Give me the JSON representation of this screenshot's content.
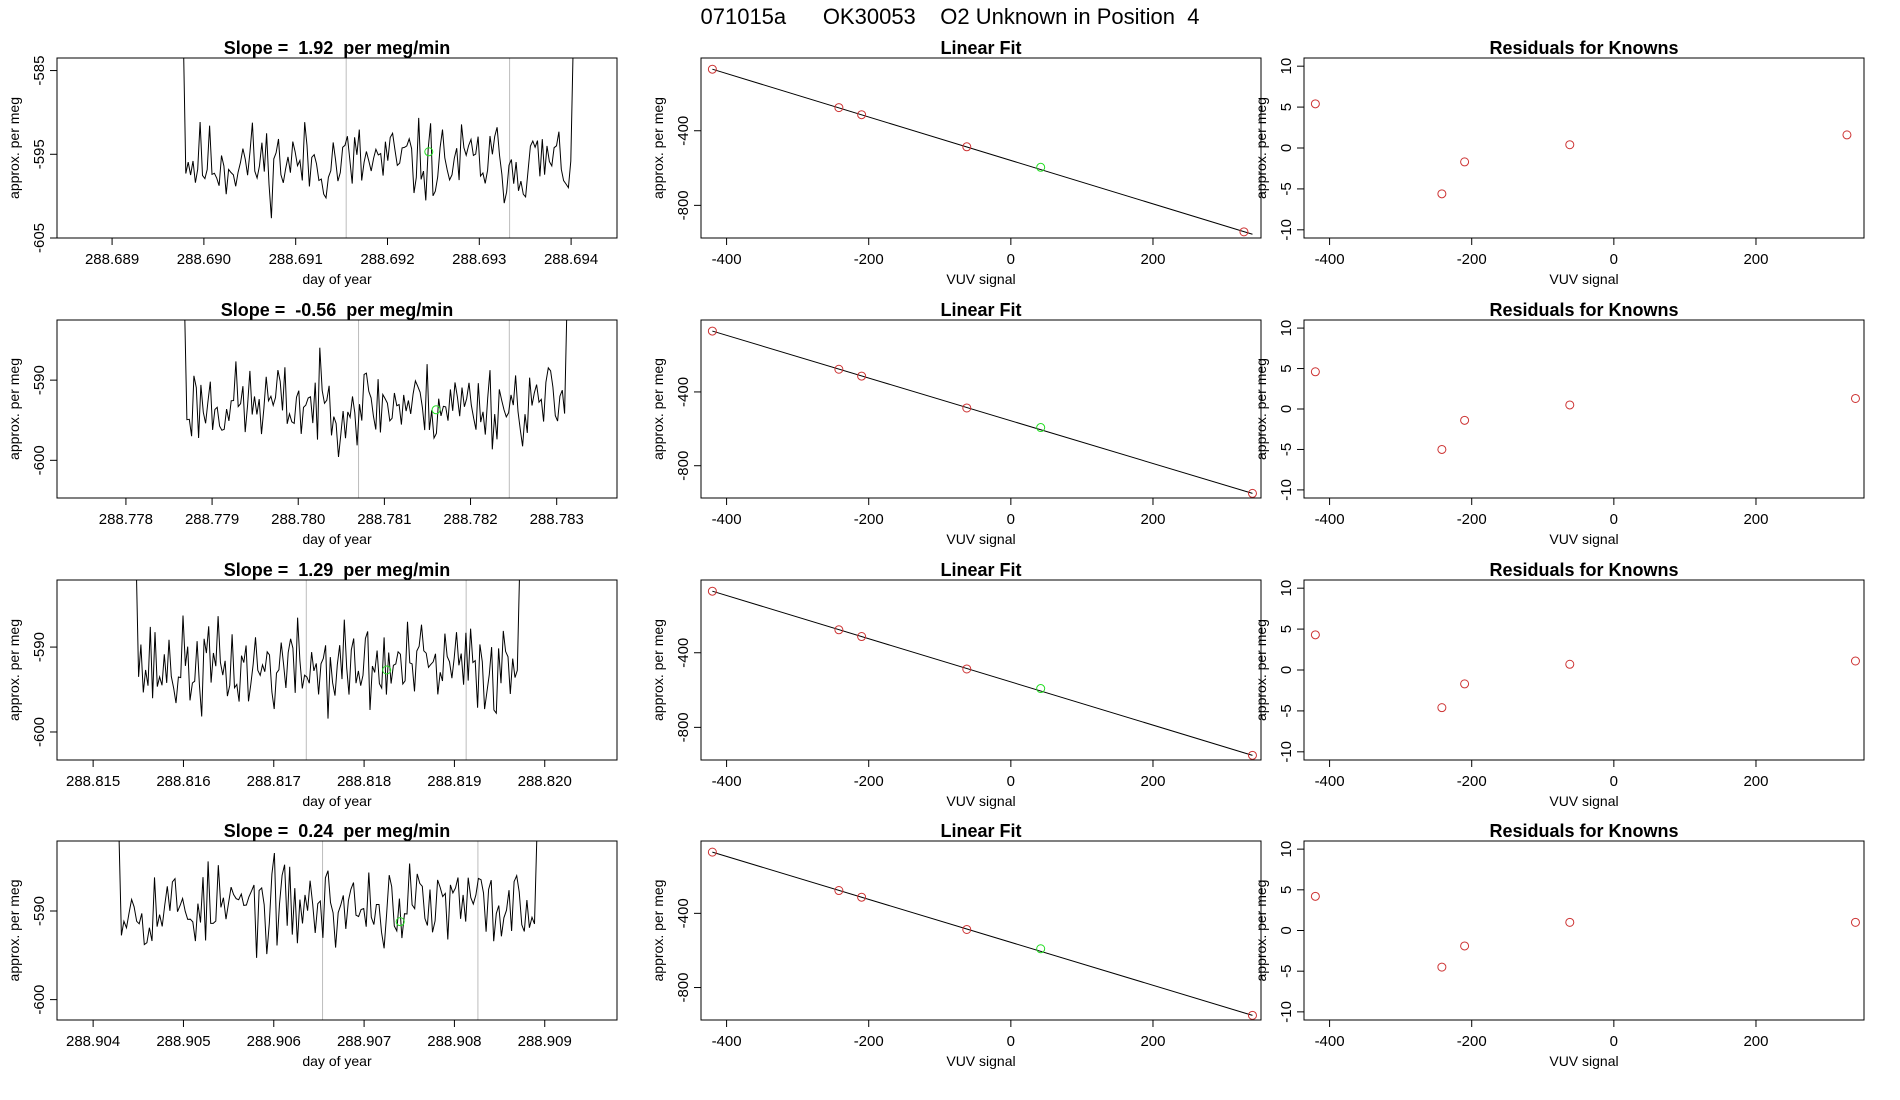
{
  "figure_title": "071015a      OK30053    O2 Unknown in Position  4",
  "colors": {
    "known_point": "#cd3333",
    "unknown_point": "#22dd22",
    "marker_line": "#bdbdbd",
    "axis": "#000000"
  },
  "chart_data": [
    {
      "type": "line",
      "row": 0,
      "col": 0,
      "title": "Slope =  1.92  per meg/min",
      "xlabel": "day of year",
      "ylabel": "approx. per meg",
      "xlim": [
        288.6884,
        288.6945
      ],
      "ylim": [
        -605,
        -583.5
      ],
      "xticks": [
        288.689,
        288.69,
        288.691,
        288.692,
        288.693,
        288.694
      ],
      "xtick_labels": [
        "288.689",
        "288.690",
        "288.691",
        "288.692",
        "288.693",
        "288.694"
      ],
      "yticks": [
        -605,
        -595,
        -585
      ],
      "ytick_labels": [
        "-605",
        "-595",
        "-585"
      ],
      "series_range": [
        288.6897,
        288.6941
      ],
      "series_center": -596,
      "series_amplitude": 2.2,
      "edge_high": true,
      "seed": 11,
      "vlines": [
        288.69155,
        288.69333
      ],
      "green_point": {
        "x": 288.69245,
        "y": -594.7
      }
    },
    {
      "type": "line",
      "row": 1,
      "col": 0,
      "title": "Slope =  -0.56  per meg/min",
      "xlabel": "day of year",
      "ylabel": "approx. per meg",
      "xlim": [
        288.7772,
        288.7837
      ],
      "ylim": [
        -604.7,
        -582.5
      ],
      "xticks": [
        288.778,
        288.779,
        288.78,
        288.781,
        288.782,
        288.783
      ],
      "xtick_labels": [
        "288.778",
        "288.779",
        "288.780",
        "288.781",
        "288.782",
        "288.783"
      ],
      "yticks": [
        -600,
        -590
      ],
      "ytick_labels": [
        "-600",
        "-590"
      ],
      "series_range": [
        288.7786,
        288.7832
      ],
      "series_center": -593,
      "series_amplitude": 2.3,
      "edge_high": true,
      "seed": 23,
      "vlines": [
        288.7807,
        288.78245
      ],
      "green_point": {
        "x": 288.7816,
        "y": -593.7
      }
    },
    {
      "type": "line",
      "row": 2,
      "col": 0,
      "title": "Slope =  1.29  per meg/min",
      "xlabel": "day of year",
      "ylabel": "approx. per meg",
      "xlim": [
        288.8146,
        288.8208
      ],
      "ylim": [
        -603.3,
        -582.1
      ],
      "xticks": [
        288.815,
        288.816,
        288.817,
        288.818,
        288.819,
        288.82
      ],
      "xtick_labels": [
        "288.815",
        "288.816",
        "288.817",
        "288.818",
        "288.819",
        "288.820"
      ],
      "yticks": [
        -600,
        -590
      ],
      "ytick_labels": [
        "-600",
        "-590"
      ],
      "series_range": [
        288.8154,
        288.8198
      ],
      "series_center": -592.5,
      "series_amplitude": 2.5,
      "edge_high": true,
      "seed": 37,
      "vlines": [
        288.81736,
        288.81913
      ],
      "green_point": {
        "x": 288.81825,
        "y": -592.7
      }
    },
    {
      "type": "line",
      "row": 3,
      "col": 0,
      "title": "Slope =  0.24  per meg/min",
      "xlabel": "day of year",
      "ylabel": "approx. per meg",
      "xlim": [
        288.9036,
        288.9098
      ],
      "ylim": [
        -602.3,
        -582.1
      ],
      "xticks": [
        288.904,
        288.905,
        288.906,
        288.907,
        288.908,
        288.909
      ],
      "xtick_labels": [
        "288.904",
        "288.905",
        "288.906",
        "288.907",
        "288.908",
        "288.909"
      ],
      "yticks": [
        -600,
        -590
      ],
      "ytick_labels": [
        "-600",
        "-590"
      ],
      "series_range": [
        288.9042,
        288.909
      ],
      "series_center": -589.5,
      "series_amplitude": 2.2,
      "edge_high": true,
      "seed": 53,
      "vlines": [
        288.90654,
        288.90826
      ],
      "green_point": {
        "x": 288.9074,
        "y": -591.2
      }
    },
    {
      "type": "scatter",
      "row": 0,
      "col": 1,
      "title": "Linear Fit",
      "xlabel": "VUV signal",
      "ylabel": "approx. per meg",
      "xlim": [
        -436,
        352
      ],
      "ylim": [
        -975,
        -10
      ],
      "xticks": [
        -400,
        -200,
        0,
        200
      ],
      "xtick_labels": [
        "-400",
        "-200",
        "0",
        "200"
      ],
      "yticks": [
        -800,
        -400
      ],
      "ytick_labels": [
        "-800",
        "-400"
      ],
      "fit_line": {
        "x": [
          -420,
          340
        ],
        "y": [
          -70,
          -955
        ]
      },
      "known_points": {
        "x": [
          -420,
          -242,
          -210,
          -62,
          328
        ],
        "y": [
          -70,
          -276,
          -314,
          -486,
          -942
        ]
      },
      "unknown_point": {
        "x": 42,
        "y": -596
      }
    },
    {
      "type": "scatter",
      "row": 1,
      "col": 1,
      "title": "Linear Fit",
      "xlabel": "VUV signal",
      "ylabel": "approx. per meg",
      "xlim": [
        -436,
        352
      ],
      "ylim": [
        -975,
        -10
      ],
      "xticks": [
        -400,
        -200,
        0,
        200
      ],
      "xtick_labels": [
        "-400",
        "-200",
        "0",
        "200"
      ],
      "yticks": [
        -800,
        -400
      ],
      "ytick_labels": [
        "-800",
        "-400"
      ],
      "fit_line": {
        "x": [
          -420,
          340
        ],
        "y": [
          -70,
          -950
        ]
      },
      "known_points": {
        "x": [
          -420,
          -242,
          -210,
          -62,
          340
        ],
        "y": [
          -70,
          -277,
          -314,
          -487,
          -950
        ]
      },
      "unknown_point": {
        "x": 42,
        "y": -593
      }
    },
    {
      "type": "scatter",
      "row": 2,
      "col": 1,
      "title": "Linear Fit",
      "xlabel": "VUV signal",
      "ylabel": "approx. per meg",
      "xlim": [
        -436,
        352
      ],
      "ylim": [
        -975,
        -10
      ],
      "xticks": [
        -400,
        -200,
        0,
        200
      ],
      "xtick_labels": [
        "-400",
        "-200",
        "0",
        "200"
      ],
      "yticks": [
        -800,
        -400
      ],
      "ytick_labels": [
        "-800",
        "-400"
      ],
      "fit_line": {
        "x": [
          -420,
          340
        ],
        "y": [
          -70,
          -950
        ]
      },
      "known_points": {
        "x": [
          -420,
          -242,
          -210,
          -62,
          340
        ],
        "y": [
          -70,
          -277,
          -313,
          -487,
          -950
        ]
      },
      "unknown_point": {
        "x": 42,
        "y": -592
      }
    },
    {
      "type": "scatter",
      "row": 3,
      "col": 1,
      "title": "Linear Fit",
      "xlabel": "VUV signal",
      "ylabel": "approx. per meg",
      "xlim": [
        -436,
        352
      ],
      "ylim": [
        -975,
        -10
      ],
      "xticks": [
        -400,
        -200,
        0,
        200
      ],
      "xtick_labels": [
        "-400",
        "-200",
        "0",
        "200"
      ],
      "yticks": [
        -800,
        -400
      ],
      "ytick_labels": [
        "-800",
        "-400"
      ],
      "fit_line": {
        "x": [
          -420,
          340
        ],
        "y": [
          -70,
          -950
        ]
      },
      "known_points": {
        "x": [
          -420,
          -242,
          -210,
          -62,
          340
        ],
        "y": [
          -70,
          -277,
          -313,
          -487,
          -950
        ]
      },
      "unknown_point": {
        "x": 42,
        "y": -591
      }
    },
    {
      "type": "scatter",
      "row": 0,
      "col": 2,
      "title": "Residuals for Knowns",
      "xlabel": "VUV signal",
      "ylabel": "approx. per meg",
      "xlim": [
        -436,
        352
      ],
      "ylim": [
        -11,
        11
      ],
      "xticks": [
        -400,
        -200,
        0,
        200
      ],
      "xtick_labels": [
        "-400",
        "-200",
        "0",
        "200"
      ],
      "yticks": [
        -10,
        -5,
        0,
        5,
        10
      ],
      "ytick_labels": [
        "-10",
        "-5",
        "0",
        "5",
        "10"
      ],
      "known_points": {
        "x": [
          -420,
          -242,
          -210,
          -62,
          328
        ],
        "y": [
          5.4,
          -5.6,
          -1.7,
          0.4,
          1.6
        ]
      }
    },
    {
      "type": "scatter",
      "row": 1,
      "col": 2,
      "title": "Residuals for Knowns",
      "xlabel": "VUV signal",
      "ylabel": "approx. per meg",
      "xlim": [
        -436,
        352
      ],
      "ylim": [
        -11,
        11
      ],
      "xticks": [
        -400,
        -200,
        0,
        200
      ],
      "xtick_labels": [
        "-400",
        "-200",
        "0",
        "200"
      ],
      "yticks": [
        -10,
        -5,
        0,
        5,
        10
      ],
      "ytick_labels": [
        "-10",
        "-5",
        "0",
        "5",
        "10"
      ],
      "known_points": {
        "x": [
          -420,
          -242,
          -210,
          -62,
          340
        ],
        "y": [
          4.6,
          -5.0,
          -1.4,
          0.5,
          1.3
        ]
      }
    },
    {
      "type": "scatter",
      "row": 2,
      "col": 2,
      "title": "Residuals for Knowns",
      "xlabel": "VUV signal",
      "ylabel": "approx. per meg",
      "xlim": [
        -436,
        352
      ],
      "ylim": [
        -11,
        11
      ],
      "xticks": [
        -400,
        -200,
        0,
        200
      ],
      "xtick_labels": [
        "-400",
        "-200",
        "0",
        "200"
      ],
      "yticks": [
        -10,
        -5,
        0,
        5,
        10
      ],
      "ytick_labels": [
        "-10",
        "-5",
        "0",
        "5",
        "10"
      ],
      "known_points": {
        "x": [
          -420,
          -242,
          -210,
          -62,
          340
        ],
        "y": [
          4.3,
          -4.6,
          -1.7,
          0.7,
          1.1
        ]
      }
    },
    {
      "type": "scatter",
      "row": 3,
      "col": 2,
      "title": "Residuals for Knowns",
      "xlabel": "VUV signal",
      "ylabel": "approx. per meg",
      "xlim": [
        -436,
        352
      ],
      "ylim": [
        -11,
        11
      ],
      "xticks": [
        -400,
        -200,
        0,
        200
      ],
      "xtick_labels": [
        "-400",
        "-200",
        "0",
        "200"
      ],
      "yticks": [
        -10,
        -5,
        0,
        5,
        10
      ],
      "ytick_labels": [
        "-10",
        "-5",
        "0",
        "5",
        "10"
      ],
      "known_points": {
        "x": [
          -420,
          -242,
          -210,
          -62,
          340
        ],
        "y": [
          4.2,
          -4.5,
          -1.9,
          1.0,
          1.0
        ]
      }
    }
  ]
}
